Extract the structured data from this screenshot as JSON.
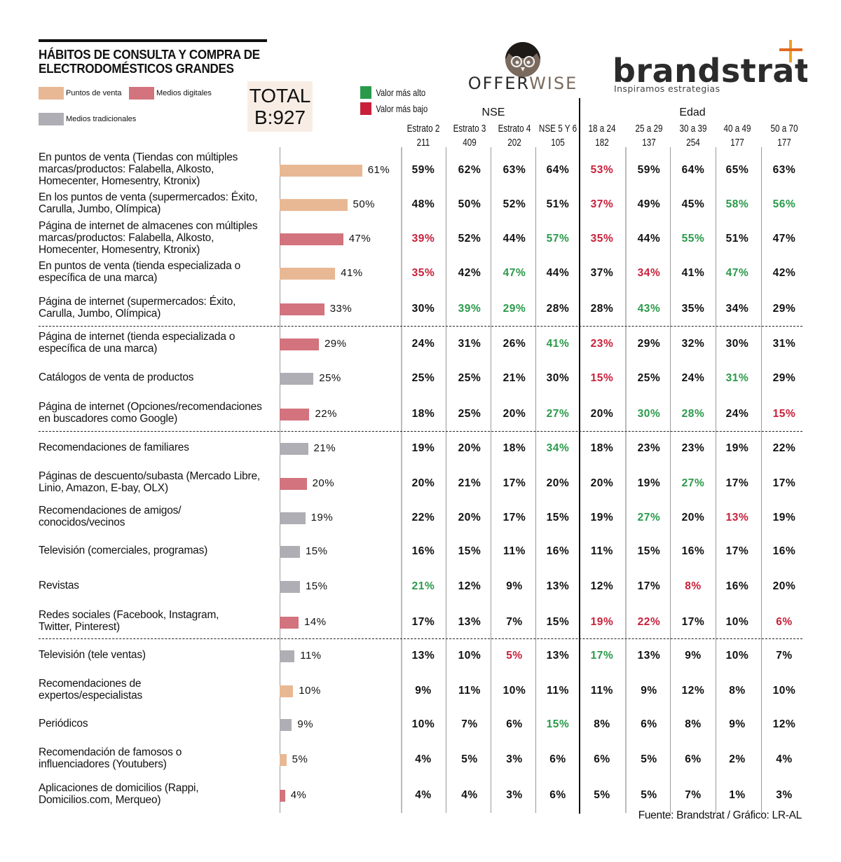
{
  "title": "HÁBITOS DE CONSULTA Y COMPRA DE\nELECTRODOMÉSTICOS GRANDES",
  "colors": {
    "puntos": "#e8b895",
    "digitales": "#d2737d",
    "tradicionales": "#aeaeb4",
    "high": "#2a9a4a",
    "low": "#c8203a"
  },
  "legend": {
    "puntos": "Puntos de venta",
    "digitales": "Medios digitales",
    "tradicionales": "Medios tradicionales"
  },
  "total": {
    "line1": "TOTAL",
    "line2": "B:927"
  },
  "key": {
    "high": "Valor más alto",
    "low": "Valor más bajo"
  },
  "logos": {
    "offerwise": "OFFERWISE",
    "brandstrat": "brandstrat",
    "brandstrat_tagline": "Inspiramos estrategias"
  },
  "source": "Fuente: Brandstrat / Gráfico: LR-AL",
  "chart_data": {
    "type": "table",
    "title": "HÁBITOS DE CONSULTA Y COMPRA DE ELECTRODOMÉSTICOS GRANDES",
    "groups": [
      {
        "name": "NSE",
        "span": 4
      },
      {
        "name": "Edad",
        "span": 5
      }
    ],
    "columns": [
      {
        "name": "Estrato 2",
        "base": "211"
      },
      {
        "name": "Estrato 3",
        "base": "409"
      },
      {
        "name": "Estrato 4",
        "base": "202"
      },
      {
        "name": "NSE 5 Y 6",
        "base": "105"
      },
      {
        "name": "18 a 24",
        "base": "182"
      },
      {
        "name": "25 a 29",
        "base": "137"
      },
      {
        "name": "30 a 39",
        "base": "254"
      },
      {
        "name": "40 a 49",
        "base": "177"
      },
      {
        "name": "50 a 70",
        "base": "177"
      }
    ],
    "rows": [
      {
        "label": "En puntos de venta (Tiendas con múltiples\nmarcas/productos: Falabella, Alkosto,\nHomecenter, Homesentry, Ktronix)",
        "type": "puntos",
        "total": 61,
        "values": [
          59,
          62,
          63,
          64,
          53,
          59,
          64,
          65,
          63
        ],
        "marks": "----L----"
      },
      {
        "label": "En los puntos de venta (supermercados: Éxito,\nCarulla, Jumbo, Olímpica)",
        "type": "puntos",
        "total": 50,
        "values": [
          48,
          50,
          52,
          51,
          37,
          49,
          45,
          58,
          56
        ],
        "marks": "----L--HH"
      },
      {
        "label": "Página de internet de almacenes con múltiples\nmarcas/productos: Falabella, Alkosto,\nHomecenter, Homesentry, Ktronix)",
        "type": "digitales",
        "total": 47,
        "values": [
          39,
          52,
          44,
          57,
          35,
          44,
          55,
          51,
          47
        ],
        "marks": "L--HL-H--"
      },
      {
        "label": "En puntos de venta (tienda especializada o\nespecífica de una marca)",
        "type": "puntos",
        "total": 41,
        "values": [
          35,
          42,
          47,
          44,
          37,
          34,
          41,
          47,
          42
        ],
        "marks": "L-H--L-H-"
      },
      {
        "label": "Página de internet (supermercados: Éxito,\nCarulla, Jumbo, Olímpica)",
        "type": "digitales",
        "total": 33,
        "values": [
          30,
          39,
          29,
          28,
          28,
          43,
          35,
          34,
          29
        ],
        "marks": "-HH--H---"
      },
      {
        "label": "Página de internet (tienda especializada o\nespecífica de una marca)",
        "type": "digitales",
        "total": 29,
        "values": [
          24,
          31,
          26,
          41,
          23,
          29,
          32,
          30,
          31
        ],
        "marks": "---HL----"
      },
      {
        "label": "Catálogos de venta de productos",
        "type": "tradicionales",
        "total": 25,
        "values": [
          25,
          25,
          21,
          30,
          15,
          25,
          24,
          31,
          29
        ],
        "marks": "----L--H-"
      },
      {
        "label": "Página de internet (Opciones/recomendaciones\nen buscadores como Google)",
        "type": "digitales",
        "total": 22,
        "values": [
          18,
          25,
          20,
          27,
          20,
          30,
          28,
          24,
          15
        ],
        "marks": "---H-HH-L"
      },
      {
        "label": "Recomendaciones de familiares",
        "type": "tradicionales",
        "total": 21,
        "values": [
          19,
          20,
          18,
          34,
          18,
          23,
          23,
          19,
          22
        ],
        "marks": "---H-----"
      },
      {
        "label": "Páginas de descuento/subasta (Mercado Libre,\nLinio, Amazon, E-bay, OLX)",
        "type": "digitales",
        "total": 20,
        "values": [
          20,
          21,
          17,
          20,
          20,
          19,
          27,
          17,
          17
        ],
        "marks": "------H--"
      },
      {
        "label": "Recomendaciones de amigos/\nconocidos/vecinos",
        "type": "tradicionales",
        "total": 19,
        "values": [
          22,
          20,
          17,
          15,
          19,
          27,
          20,
          13,
          19
        ],
        "marks": "-----H-L-"
      },
      {
        "label": "Televisión (comerciales, programas)",
        "type": "tradicionales",
        "total": 15,
        "values": [
          16,
          15,
          11,
          16,
          11,
          15,
          16,
          17,
          16
        ],
        "marks": "---------"
      },
      {
        "label": "Revistas",
        "type": "tradicionales",
        "total": 15,
        "values": [
          21,
          12,
          9,
          13,
          12,
          17,
          8,
          16,
          20
        ],
        "marks": "H-----L--"
      },
      {
        "label": "Redes sociales (Facebook, Instagram,\nTwitter, Pinterest)",
        "type": "digitales",
        "total": 14,
        "values": [
          17,
          13,
          7,
          15,
          19,
          22,
          17,
          10,
          6
        ],
        "marks": "----LL--L"
      },
      {
        "label": "Televisión (tele ventas)",
        "type": "tradicionales",
        "total": 11,
        "values": [
          13,
          10,
          5,
          13,
          17,
          13,
          9,
          10,
          7
        ],
        "marks": "--L-H----"
      },
      {
        "label": "Recomendaciones de\nexpertos/especialistas",
        "type": "puntos",
        "total": 10,
        "values": [
          9,
          11,
          10,
          11,
          11,
          9,
          12,
          8,
          10
        ],
        "marks": "---------"
      },
      {
        "label": "Periódicos",
        "type": "tradicionales",
        "total": 9,
        "values": [
          10,
          7,
          6,
          15,
          8,
          6,
          8,
          9,
          12
        ],
        "marks": "---H-----"
      },
      {
        "label": "Recomendación de famosos o\ninfluenciadores (Youtubers)",
        "type": "puntos",
        "total": 5,
        "values": [
          4,
          5,
          3,
          6,
          6,
          5,
          6,
          2,
          4
        ],
        "marks": "---------"
      },
      {
        "label": "Aplicaciones de domicilios (Rappi,\nDomicilios.com, Merqueo)",
        "type": "digitales",
        "total": 4,
        "values": [
          4,
          4,
          3,
          6,
          5,
          5,
          7,
          1,
          3
        ],
        "marks": "---------"
      }
    ]
  }
}
